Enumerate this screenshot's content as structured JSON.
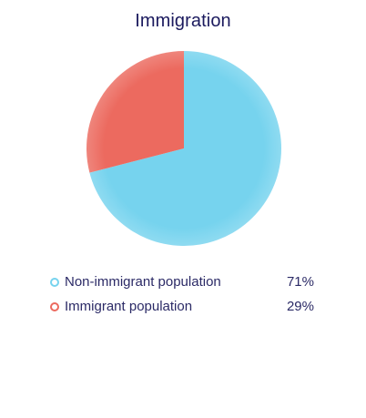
{
  "colors": {
    "non_immigrant": "#76d3ee",
    "immigrant": "#ec6a5f",
    "title": "#1b1a5e",
    "legend_text": "#2b2a66"
  },
  "chart_data": {
    "type": "pie",
    "title": "Immigration",
    "slices": [
      {
        "label": "Non-immigrant population",
        "value": 71,
        "display": "71%",
        "color": "#76d3ee"
      },
      {
        "label": "Immigrant population",
        "value": 29,
        "display": "29%",
        "color": "#ec6a5f"
      }
    ],
    "legend_position": "bottom"
  }
}
